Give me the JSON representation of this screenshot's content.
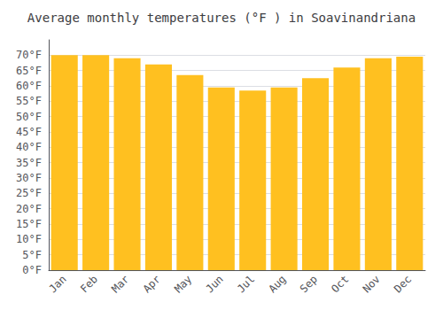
{
  "chart_data": {
    "type": "bar",
    "title": "Average monthly temperatures (°F ) in Soavinandriana",
    "categories": [
      "Jan",
      "Feb",
      "Mar",
      "Apr",
      "May",
      "Jun",
      "Jul",
      "Aug",
      "Sep",
      "Oct",
      "Nov",
      "Dec"
    ],
    "values": [
      70,
      70,
      69,
      67,
      63.5,
      59.5,
      58.5,
      59.5,
      62.5,
      66,
      69,
      69.5
    ],
    "color": "#FFC020",
    "ylim": [
      0,
      75
    ],
    "yticks": [
      {
        "value": 0,
        "label": "0°F"
      },
      {
        "value": 5,
        "label": "5°F"
      },
      {
        "value": 10,
        "label": "10°F"
      },
      {
        "value": 15,
        "label": "15°F"
      },
      {
        "value": 20,
        "label": "20°F"
      },
      {
        "value": 25,
        "label": "25°F"
      },
      {
        "value": 30,
        "label": "30°F"
      },
      {
        "value": 35,
        "label": "35°F"
      },
      {
        "value": 40,
        "label": "40°F"
      },
      {
        "value": 45,
        "label": "45°F"
      },
      {
        "value": 50,
        "label": "50°F"
      },
      {
        "value": 55,
        "label": "55°F"
      },
      {
        "value": 60,
        "label": "60°F"
      },
      {
        "value": 65,
        "label": "65°F"
      },
      {
        "value": 70,
        "label": "70°F"
      }
    ],
    "grid": true
  }
}
